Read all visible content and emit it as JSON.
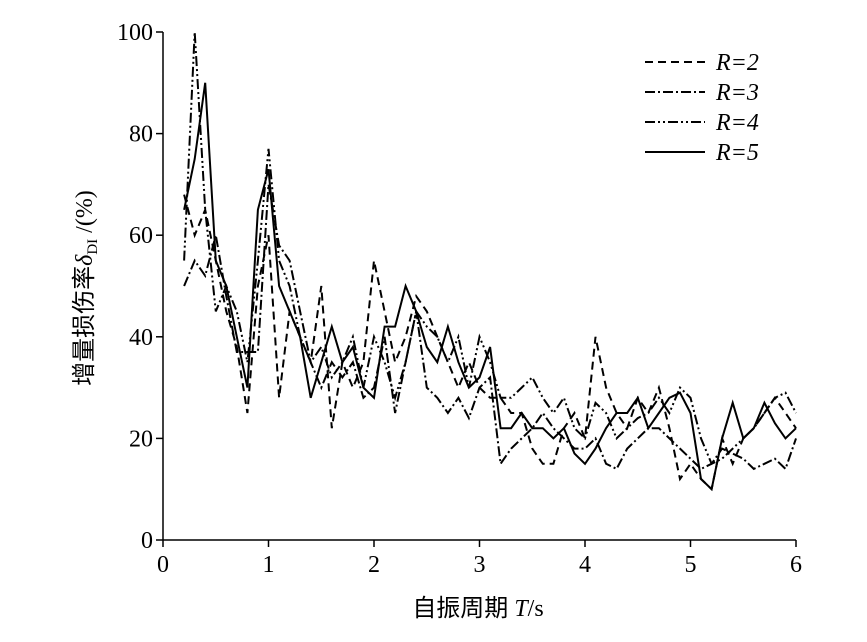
{
  "chart_data": {
    "type": "line",
    "xlabel": [
      "自振周期 ",
      "T",
      "/s"
    ],
    "ylabel": [
      "增量损伤率",
      "δ",
      "DI",
      " /(%)"
    ],
    "x": [
      0.2,
      0.3,
      0.4,
      0.5,
      0.6,
      0.7,
      0.8,
      0.9,
      1.0,
      1.1,
      1.2,
      1.3,
      1.4,
      1.5,
      1.6,
      1.7,
      1.8,
      1.9,
      2.0,
      2.1,
      2.2,
      2.3,
      2.4,
      2.5,
      2.6,
      2.7,
      2.8,
      2.9,
      3.0,
      3.1,
      3.2,
      3.3,
      3.4,
      3.5,
      3.6,
      3.7,
      3.8,
      3.9,
      4.0,
      4.1,
      4.2,
      4.3,
      4.4,
      4.5,
      4.6,
      4.7,
      4.8,
      4.9,
      5.0,
      5.1,
      5.2,
      5.3,
      5.4,
      5.5,
      5.6,
      5.7,
      5.8,
      5.9,
      6.0
    ],
    "series": [
      {
        "name": "R=2",
        "color": "#000000",
        "dash": "8,5",
        "values": [
          68,
          60,
          65,
          55,
          45,
          38,
          25,
          50,
          60,
          28,
          45,
          40,
          35,
          50,
          22,
          35,
          30,
          35,
          55,
          45,
          35,
          40,
          48,
          45,
          40,
          35,
          30,
          35,
          30,
          28,
          28,
          25,
          25,
          18,
          15,
          15,
          22,
          25,
          20,
          40,
          30,
          25,
          22,
          28,
          25,
          30,
          22,
          12,
          15,
          12,
          10,
          20,
          15,
          20,
          22,
          25,
          28,
          25,
          22
        ]
      },
      {
        "name": "R=3",
        "color": "#000000",
        "dash": "10,3,2,3",
        "values": [
          50,
          55,
          52,
          60,
          48,
          37,
          37,
          37,
          70,
          58,
          55,
          45,
          35,
          30,
          35,
          32,
          35,
          28,
          30,
          40,
          25,
          35,
          45,
          30,
          28,
          25,
          28,
          24,
          30,
          32,
          15,
          18,
          20,
          22,
          25,
          22,
          20,
          18,
          18,
          20,
          15,
          14,
          18,
          20,
          22,
          22,
          20,
          18,
          16,
          14,
          15,
          18,
          17,
          16,
          14,
          15,
          16,
          14,
          20
        ]
      },
      {
        "name": "R=4",
        "color": "#000000",
        "dash": "10,3,2,3,2,3",
        "values": [
          55,
          100,
          65,
          45,
          50,
          45,
          35,
          55,
          77,
          55,
          50,
          40,
          35,
          38,
          32,
          35,
          40,
          30,
          40,
          35,
          28,
          35,
          45,
          42,
          40,
          35,
          40,
          30,
          40,
          35,
          28,
          28,
          30,
          32,
          28,
          25,
          28,
          22,
          20,
          27,
          25,
          20,
          22,
          24,
          25,
          28,
          25,
          30,
          28,
          20,
          15,
          16,
          18,
          20,
          22,
          25,
          28,
          29,
          25
        ]
      },
      {
        "name": "R=5",
        "color": "#000000",
        "dash": "none",
        "values": [
          65,
          75,
          90,
          55,
          50,
          40,
          30,
          65,
          73,
          50,
          45,
          40,
          28,
          35,
          42,
          35,
          38,
          30,
          28,
          42,
          42,
          50,
          45,
          38,
          35,
          42,
          35,
          30,
          32,
          38,
          22,
          22,
          25,
          22,
          22,
          20,
          22,
          17,
          15,
          18,
          22,
          25,
          25,
          28,
          22,
          25,
          28,
          29,
          25,
          12,
          10,
          20,
          27,
          20,
          22,
          27,
          23,
          20,
          22
        ]
      }
    ],
    "xlim": [
      0,
      6
    ],
    "xticks": [
      0,
      1,
      2,
      3,
      4,
      5,
      6
    ],
    "ylim": [
      0,
      100
    ],
    "yticks": [
      0,
      20,
      40,
      60,
      80,
      100
    ],
    "legend": "top-right"
  }
}
